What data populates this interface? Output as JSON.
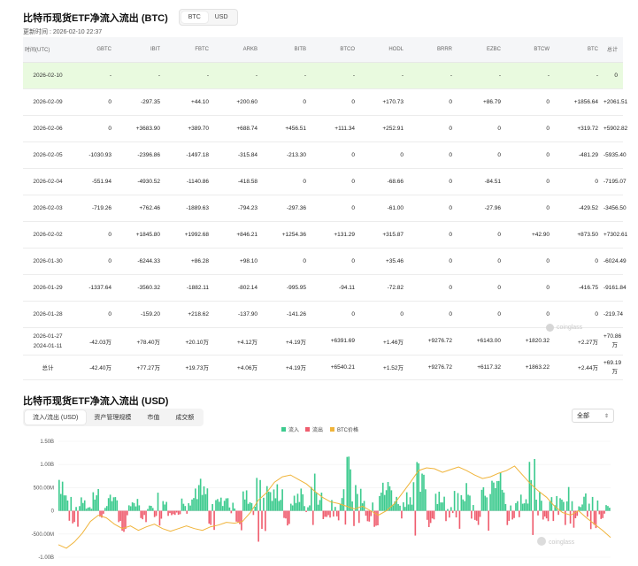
{
  "section1": {
    "title": "比特币现货ETF净流入流出 (BTC)",
    "toggle": [
      "BTC",
      "USD"
    ],
    "updated": "更新时间 : 2026-02-10 22:37"
  },
  "table": {
    "headers": [
      "时间(UTC)",
      "GBTC",
      "IBIT",
      "FBTC",
      "ARKB",
      "BITB",
      "BTCO",
      "HODL",
      "BRRR",
      "EZBC",
      "BTCW",
      "BTC",
      "总计"
    ],
    "rows": [
      [
        "2026-02-10",
        "-",
        "-",
        "-",
        "-",
        "-",
        "-",
        "-",
        "-",
        "-",
        "-",
        "-",
        "0"
      ],
      [
        "2026-02-09",
        "0",
        "-297.35",
        "+44.10",
        "+200.60",
        "0",
        "0",
        "+170.73",
        "0",
        "+86.79",
        "0",
        "+1856.64",
        "+2061.51"
      ],
      [
        "2026-02-06",
        "0",
        "+3683.90",
        "+389.70",
        "+688.74",
        "+456.51",
        "+111.34",
        "+252.91",
        "0",
        "0",
        "0",
        "+319.72",
        "+5902.82"
      ],
      [
        "2026-02-05",
        "-1030.93",
        "-2396.86",
        "-1497.18",
        "-315.84",
        "-213.30",
        "0",
        "0",
        "0",
        "0",
        "0",
        "-481.29",
        "-5935.40"
      ],
      [
        "2026-02-04",
        "-551.94",
        "-4930.52",
        "-1140.86",
        "-418.58",
        "0",
        "0",
        "-68.66",
        "0",
        "-84.51",
        "0",
        "0",
        "-7195.07"
      ],
      [
        "2026-02-03",
        "-719.26",
        "+762.46",
        "-1889.63",
        "-794.23",
        "-297.36",
        "0",
        "-61.00",
        "0",
        "-27.96",
        "0",
        "-429.52",
        "-3456.50"
      ],
      [
        "2026-02-02",
        "0",
        "+1845.80",
        "+1992.68",
        "+846.21",
        "+1254.36",
        "+131.29",
        "+315.87",
        "0",
        "0",
        "+42.90",
        "+873.50",
        "+7302.61"
      ],
      [
        "2026-01-30",
        "0",
        "-6244.33",
        "+86.28",
        "+98.10",
        "0",
        "0",
        "+35.46",
        "0",
        "0",
        "0",
        "0",
        "-6024.49"
      ],
      [
        "2026-01-29",
        "-1337.64",
        "-3560.32",
        "-1882.11",
        "-802.14",
        "-995.95",
        "-94.11",
        "-72.82",
        "0",
        "0",
        "0",
        "-416.75",
        "-9161.84"
      ],
      [
        "2026-01-28",
        "0",
        "-159.20",
        "+218.62",
        "-137.90",
        "-141.26",
        "0",
        "0",
        "0",
        "0",
        "0",
        "0",
        "-219.74"
      ]
    ],
    "range_row": {
      "date_from": "2026-01-27",
      "date_to": "2024-01-11",
      "values": [
        "-42.03万",
        "+78.40万",
        "+20.10万",
        "+4.12万",
        "+4.19万",
        "+6391.69",
        "+1.46万",
        "+9276.72",
        "+6143.00",
        "+1820.32",
        "+2.27万",
        "+70.86万"
      ]
    },
    "total_row": [
      "总计",
      "-42.40万",
      "+77.27万",
      "+19.73万",
      "+4.06万",
      "+4.19万",
      "+6540.21",
      "+1.52万",
      "+9276.72",
      "+6117.32",
      "+1863.22",
      "+2.44万",
      "+69.19万"
    ]
  },
  "watermark": "coinglass",
  "section2": {
    "title": "比特币现货ETF净流入流出 (USD)",
    "tabs": [
      "流入/流出 (USD)",
      "资产管理规模",
      "市值",
      "成交额"
    ],
    "select_value": "全部"
  },
  "chart_data": {
    "type": "bar",
    "title": "",
    "legend": [
      "流入",
      "流出",
      "BTC价格"
    ],
    "legend_placement": "top-center",
    "y_ticks": [
      "1.50B",
      "1.00B",
      "500.00M",
      "0",
      "-500.00M",
      "-1.00B"
    ],
    "ylim": [
      -1000000000,
      1500000000
    ],
    "colors": {
      "inflow": "#3ecb8f",
      "outflow": "#ef5d6e",
      "price": "#f0b43a"
    },
    "series": [
      {
        "name": "流入/流出",
        "values_million_usd": [
          900,
          400,
          -300,
          250,
          100,
          650,
          -150,
          300,
          420,
          -400,
          200,
          310,
          -220,
          120,
          500,
          380,
          180,
          -120,
          280,
          350,
          620,
          480,
          -350,
          260,
          300,
          150,
          -500,
          400,
          250,
          1000,
          680,
          420,
          560,
          -280,
          280,
          460,
          120,
          730,
          380,
          -180,
          280,
          400,
          1100,
          640,
          520,
          -300,
          -800,
          550,
          620,
          300,
          280,
          420,
          900,
          720,
          -430,
          480,
          350,
          -150,
          760,
          640,
          300,
          -260,
          500,
          620,
          800,
          430,
          -300,
          380,
          420,
          1000,
          460,
          -200,
          310,
          270,
          500,
          -380,
          200,
          380,
          -600,
          250,
          150
        ]
      },
      {
        "name": "BTC价格",
        "values_relative": [
          0.12,
          0.08,
          0.15,
          0.25,
          0.38,
          0.45,
          0.42,
          0.35,
          0.3,
          0.33,
          0.28,
          0.32,
          0.35,
          0.3,
          0.27,
          0.3,
          0.33,
          0.3,
          0.28,
          0.32,
          0.34,
          0.37,
          0.36,
          0.38,
          0.48,
          0.62,
          0.7,
          0.82,
          0.88,
          0.9,
          0.85,
          0.8,
          0.72,
          0.65,
          0.6,
          0.58,
          0.55,
          0.52,
          0.55,
          0.5,
          0.45,
          0.5,
          0.58,
          0.7,
          0.82,
          0.95,
          0.98,
          0.97,
          0.93,
          0.96,
          0.99,
          0.95,
          0.9,
          0.86,
          0.88,
          0.92,
          0.95,
          1.0,
          0.9,
          0.8,
          0.72,
          0.65,
          0.55,
          0.48,
          0.45,
          0.5,
          0.42,
          0.35,
          0.28,
          0.2
        ]
      }
    ]
  }
}
